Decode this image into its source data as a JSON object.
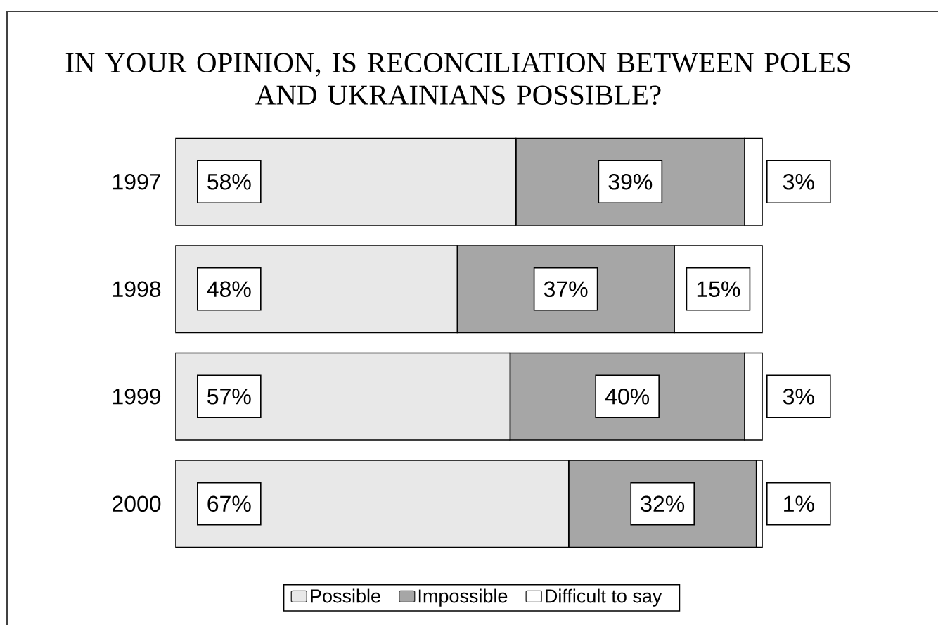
{
  "chart_data": {
    "type": "bar",
    "orientation": "horizontal",
    "stacked": true,
    "title": "IN YOUR OPINION, IS RECONCILIATION BETWEEN POLES AND UKRAINIANS POSSIBLE?",
    "categories": [
      "1997",
      "1998",
      "1999",
      "2000"
    ],
    "series": [
      {
        "name": "Possible",
        "color": "#e8e8e8",
        "values": [
          58,
          48,
          57,
          67
        ],
        "value_labels": [
          "58%",
          "48%",
          "57%",
          "67%"
        ]
      },
      {
        "name": "Impossible",
        "color": "#a6a6a6",
        "values": [
          39,
          37,
          40,
          32
        ],
        "value_labels": [
          "39%",
          "37%",
          "40%",
          "32%"
        ]
      },
      {
        "name": "Difficult to say",
        "color": "#ffffff",
        "values": [
          3,
          15,
          3,
          1
        ],
        "value_labels": [
          "3%",
          "15%",
          "3%",
          "1%"
        ]
      }
    ],
    "xlim": [
      0,
      100
    ],
    "tick_labels": "y",
    "legend": "bottom"
  }
}
